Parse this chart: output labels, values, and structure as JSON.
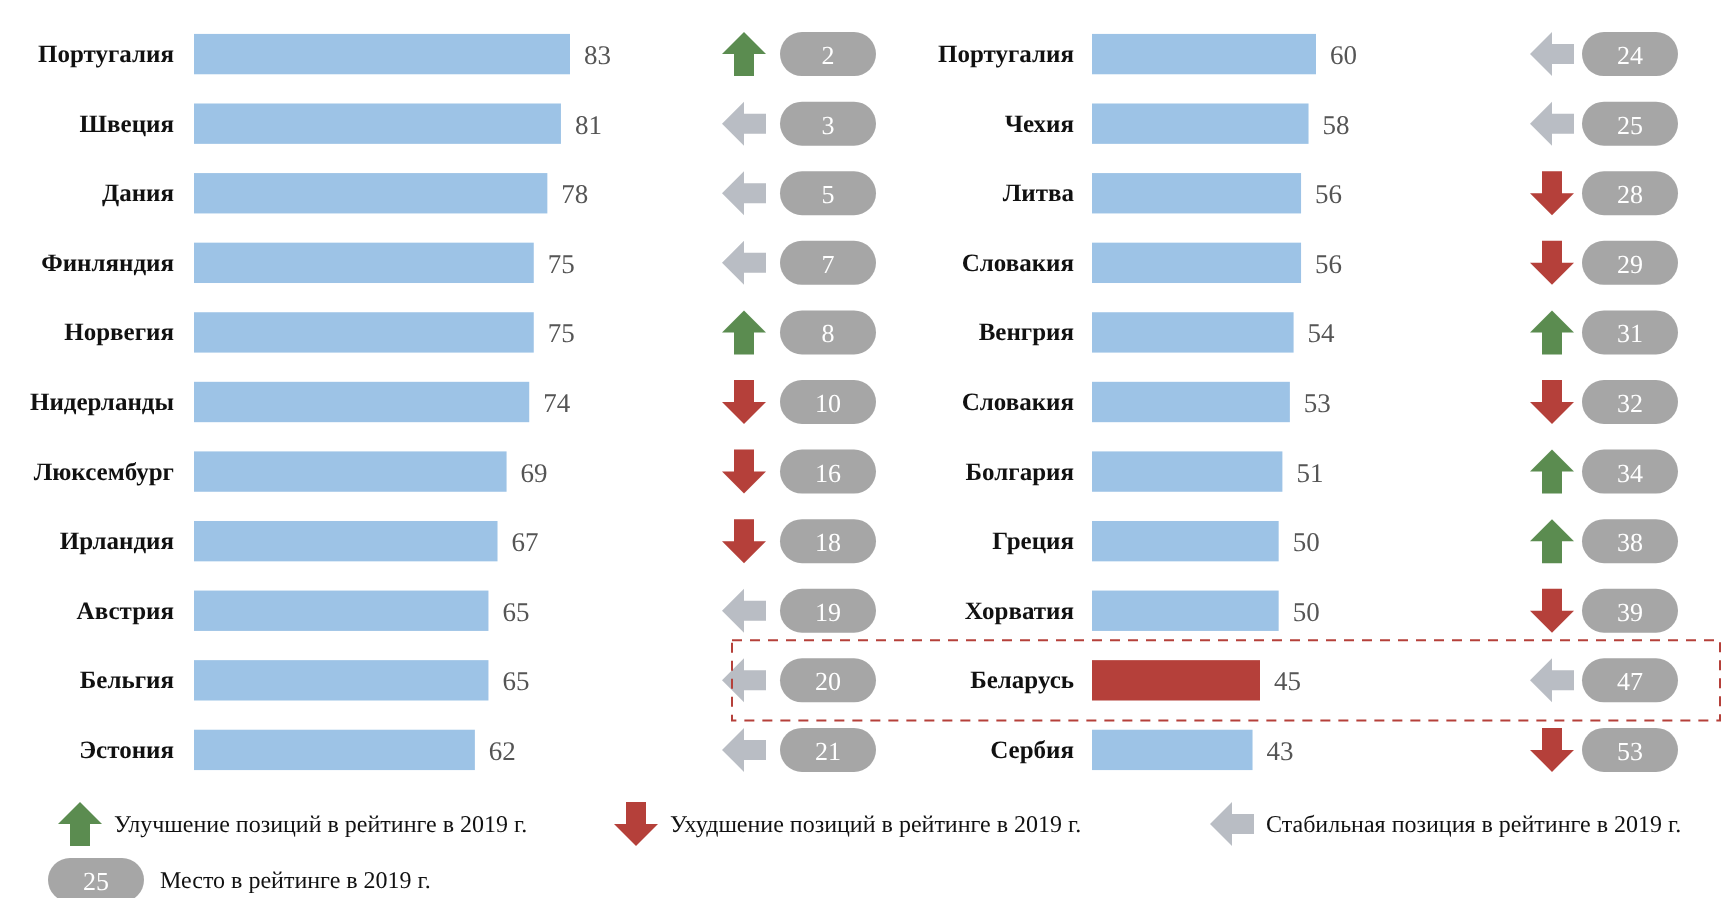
{
  "chart_data": [
    {
      "type": "bar",
      "orientation": "horizontal",
      "data_labels": true,
      "color": "#9dc3e6",
      "categories": [
        "Португалия",
        "Швеция",
        "Дания",
        "Финляндия",
        "Норвегия",
        "Нидерланды",
        "Люксембург",
        "Ирландия",
        "Австрия",
        "Бельгия",
        "Эстония"
      ],
      "values": [
        83,
        81,
        78,
        75,
        75,
        74,
        69,
        67,
        65,
        65,
        62
      ],
      "annotations": [
        "2",
        "3",
        "5",
        "7",
        "8",
        "10",
        "16",
        "18",
        "19",
        "20",
        "21",
        "Улучшение позиций в рейтинге в 2019 г.",
        "Ухудшение позиций в рейтинге в 2019 г.",
        "Стабильная позиция в рейтинге в 2019 г.",
        "25",
        "Место в рейтинге в 2019 г."
      ]
    },
    {
      "type": "bar",
      "orientation": "horizontal",
      "data_labels": true,
      "categories": [
        "Португалия",
        "Чехия",
        "Литва",
        "Словакия",
        "Венгрия",
        "Словакия",
        "Болгария",
        "Греция",
        "Хорватия",
        "Беларусь",
        "Сербия"
      ],
      "values": [
        60,
        58,
        56,
        56,
        54,
        53,
        51,
        50,
        50,
        45,
        43
      ],
      "colors": [
        "#9dc3e6",
        "#9dc3e6",
        "#9dc3e6",
        "#9dc3e6",
        "#9dc3e6",
        "#9dc3e6",
        "#9dc3e6",
        "#9dc3e6",
        "#9dc3e6",
        "#b5403a",
        "#9dc3e6"
      ],
      "annotations": [
        "24",
        "25",
        "28",
        "29",
        "31",
        "32",
        "34",
        "38",
        "39",
        "47",
        "53"
      ]
    }
  ]
}
